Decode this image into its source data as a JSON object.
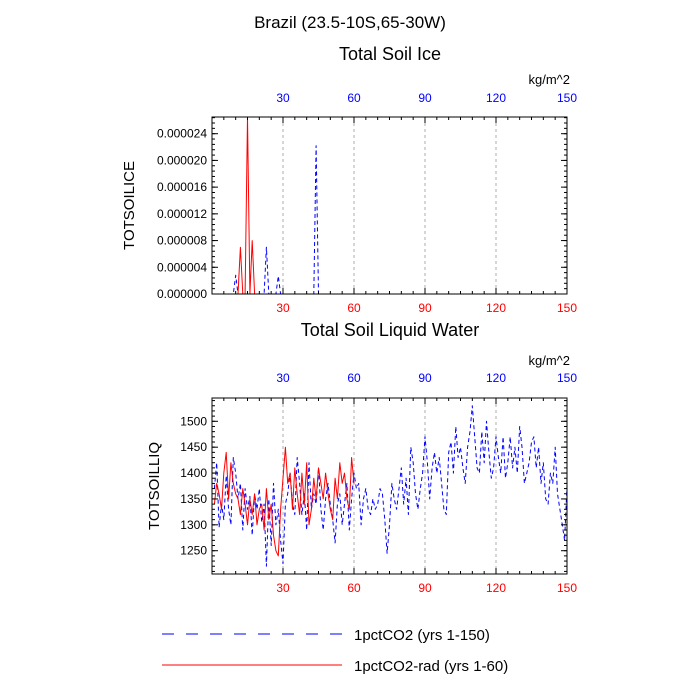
{
  "page": {
    "title": "Brazil (23.5-10S,65-30W)"
  },
  "colors": {
    "series_blue": "#0000ff",
    "series_red": "#ff0000",
    "bottom_ticks": "#ff0000",
    "top_ticks": "#0000ff",
    "grid": "#999999",
    "axis": "#000000"
  },
  "legend": {
    "items": [
      {
        "label": "1pctCO2 (yrs 1-150)",
        "color": "#0000ff",
        "dash": "dashed"
      },
      {
        "label": "1pctCO2-rad (yrs 1-60)",
        "color": "#ff0000",
        "dash": "solid"
      }
    ]
  },
  "chart_data": [
    {
      "type": "line",
      "title": "Total Soil Ice",
      "ylabel": "TOTSOILICE",
      "unit_label": "kg/m^2",
      "xlim": [
        0,
        150
      ],
      "ylim": [
        0,
        2.65e-05
      ],
      "xticks": [
        30,
        60,
        90,
        120,
        150
      ],
      "yticks": [
        0,
        4e-06,
        8e-06,
        1.2e-05,
        1.6e-05,
        2e-05,
        2.4e-05
      ],
      "ytick_labels": [
        "0.000000",
        "0.000004",
        "0.000008",
        "0.000012",
        "0.000016",
        "0.000020",
        "0.000024"
      ],
      "grid": "x-dashed",
      "series": [
        {
          "color": "#0000ff",
          "dash": "dashed",
          "x": [
            1,
            2,
            3,
            4,
            5,
            6,
            7,
            8,
            9,
            10,
            11,
            12,
            13,
            14,
            15,
            16,
            17,
            18,
            19,
            20,
            21,
            22,
            23,
            24,
            25,
            26,
            27,
            28,
            29,
            30,
            31,
            32,
            33,
            34,
            35,
            36,
            37,
            38,
            39,
            40,
            41,
            42,
            43,
            44,
            45,
            46,
            47,
            48,
            49,
            50,
            51,
            52,
            53,
            54,
            55,
            56,
            57,
            58,
            59,
            60,
            61,
            62,
            63,
            64,
            65,
            66,
            67,
            68,
            69,
            70,
            71,
            72,
            73,
            74,
            75,
            76,
            77,
            78,
            79,
            80,
            81,
            82,
            83,
            84,
            85,
            86,
            87,
            88,
            89,
            90,
            91,
            92,
            93,
            94,
            95,
            96,
            97,
            98,
            99,
            100,
            101,
            102,
            103,
            104,
            105,
            106,
            107,
            108,
            109,
            110,
            111,
            112,
            113,
            114,
            115,
            116,
            117,
            118,
            119,
            120,
            121,
            122,
            123,
            124,
            125,
            126,
            127,
            128,
            129,
            130,
            131,
            132,
            133,
            134,
            135,
            136,
            137,
            138,
            139,
            140,
            141,
            142,
            143,
            144,
            145,
            146,
            147,
            148,
            149,
            150
          ],
          "y": [
            0,
            0,
            0,
            0,
            0,
            0,
            0,
            0,
            0,
            2.8e-06,
            0,
            0,
            0,
            0,
            0,
            0,
            0,
            0,
            0,
            0,
            0,
            0,
            7e-06,
            0,
            0,
            0,
            0,
            2.7e-06,
            0,
            0,
            0,
            0,
            0,
            0,
            0,
            0,
            0,
            0,
            0,
            0,
            0,
            0,
            0,
            2.22e-05,
            0,
            0,
            0,
            0,
            0,
            0,
            0,
            0,
            0,
            0,
            0,
            0,
            0,
            0,
            0,
            0,
            0,
            0,
            0,
            0,
            0,
            0,
            0,
            0,
            0,
            0,
            0,
            0,
            0,
            0,
            0,
            0,
            0,
            0,
            0,
            0,
            0,
            0,
            0,
            0,
            0,
            0,
            0,
            0,
            0,
            0,
            0,
            0,
            0,
            0,
            0,
            0,
            0,
            0,
            0,
            0,
            0,
            0,
            0,
            0,
            0,
            0,
            0,
            0,
            0,
            0,
            0,
            0,
            0,
            0,
            0,
            0,
            0,
            0,
            0,
            0,
            0,
            0,
            0,
            0,
            0,
            0,
            0,
            0,
            0,
            0,
            0,
            0,
            0,
            0,
            0,
            0,
            0,
            0,
            0,
            0,
            0,
            0,
            0,
            0,
            0,
            0,
            0,
            0,
            0,
            0
          ]
        },
        {
          "color": "#ff0000",
          "dash": "solid",
          "x": [
            1,
            2,
            3,
            4,
            5,
            6,
            7,
            8,
            9,
            10,
            11,
            12,
            13,
            14,
            15,
            16,
            17,
            18,
            19,
            20,
            21,
            22,
            23,
            24,
            25,
            26,
            27,
            28,
            29,
            30,
            31,
            32,
            33,
            34,
            35,
            36,
            37,
            38,
            39,
            40,
            41,
            42,
            43,
            44,
            45,
            46,
            47,
            48,
            49,
            50,
            51,
            52,
            53,
            54,
            55,
            56,
            57,
            58,
            59,
            60
          ],
          "y": [
            0,
            0,
            0,
            0,
            0,
            0,
            0,
            0,
            0,
            0,
            0,
            7e-06,
            0,
            0,
            2.65e-05,
            0,
            8e-06,
            0,
            0,
            0,
            0,
            0,
            0,
            0,
            0,
            0,
            0,
            0,
            0,
            0,
            0,
            0,
            0,
            0,
            0,
            0,
            0,
            0,
            0,
            0,
            0,
            0,
            0,
            0,
            0,
            0,
            0,
            0,
            0,
            0,
            0,
            0,
            0,
            0,
            0,
            0,
            0,
            0,
            0,
            0
          ]
        }
      ]
    },
    {
      "type": "line",
      "title": "Total Soil Liquid Water",
      "ylabel": "TOTSOILLIQ",
      "unit_label": "kg/m^2",
      "xlim": [
        0,
        150
      ],
      "ylim": [
        1205,
        1545
      ],
      "xticks": [
        30,
        60,
        90,
        120,
        150
      ],
      "yticks": [
        1250,
        1300,
        1350,
        1400,
        1450,
        1500
      ],
      "ytick_labels": [
        "1250",
        "1300",
        "1350",
        "1400",
        "1450",
        "1500"
      ],
      "grid": "x-dashed",
      "series": [
        {
          "color": "#0000ff",
          "dash": "dashed",
          "x": [
            1,
            2,
            3,
            4,
            5,
            6,
            7,
            8,
            9,
            10,
            11,
            12,
            13,
            14,
            15,
            16,
            17,
            18,
            19,
            20,
            21,
            22,
            23,
            24,
            25,
            26,
            27,
            28,
            29,
            30,
            31,
            32,
            33,
            34,
            35,
            36,
            37,
            38,
            39,
            40,
            41,
            42,
            43,
            44,
            45,
            46,
            47,
            48,
            49,
            50,
            51,
            52,
            53,
            54,
            55,
            56,
            57,
            58,
            59,
            60,
            61,
            62,
            63,
            64,
            65,
            66,
            67,
            68,
            69,
            70,
            71,
            72,
            73,
            74,
            75,
            76,
            77,
            78,
            79,
            80,
            81,
            82,
            83,
            84,
            85,
            86,
            87,
            88,
            89,
            90,
            91,
            92,
            93,
            94,
            95,
            96,
            97,
            98,
            99,
            100,
            101,
            102,
            103,
            104,
            105,
            106,
            107,
            108,
            109,
            110,
            111,
            112,
            113,
            114,
            115,
            116,
            117,
            118,
            119,
            120,
            121,
            122,
            123,
            124,
            125,
            126,
            127,
            128,
            129,
            130,
            131,
            132,
            133,
            134,
            135,
            136,
            137,
            138,
            139,
            140,
            141,
            142,
            143,
            144,
            145,
            146,
            147,
            148,
            149,
            150
          ],
          "y": [
            1370,
            1420,
            1295,
            1340,
            1310,
            1395,
            1330,
            1300,
            1430,
            1400,
            1350,
            1380,
            1290,
            1370,
            1330,
            1355,
            1280,
            1360,
            1330,
            1370,
            1305,
            1340,
            1220,
            1350,
            1260,
            1380,
            1300,
            1330,
            1270,
            1225,
            1340,
            1360,
            1400,
            1340,
            1320,
            1430,
            1380,
            1320,
            1360,
            1290,
            1420,
            1330,
            1360,
            1340,
            1410,
            1330,
            1290,
            1350,
            1380,
            1340,
            1310,
            1265,
            1340,
            1360,
            1300,
            1340,
            1380,
            1290,
            1350,
            1400,
            1370,
            1380,
            1300,
            1350,
            1370,
            1330,
            1320,
            1350,
            1330,
            1340,
            1370,
            1360,
            1310,
            1245,
            1300,
            1380,
            1350,
            1330,
            1370,
            1410,
            1340,
            1390,
            1320,
            1450,
            1420,
            1360,
            1330,
            1370,
            1400,
            1470,
            1420,
            1350,
            1410,
            1440,
            1400,
            1430,
            1380,
            1330,
            1320,
            1440,
            1460,
            1400,
            1490,
            1430,
            1450,
            1410,
            1380,
            1450,
            1480,
            1530,
            1470,
            1410,
            1400,
            1480,
            1420,
            1500,
            1440,
            1390,
            1410,
            1470,
            1430,
            1400,
            1470,
            1390,
            1420,
            1470,
            1410,
            1450,
            1400,
            1490,
            1450,
            1380,
            1400,
            1420,
            1460,
            1470,
            1410,
            1450,
            1380,
            1420,
            1350,
            1340,
            1400,
            1380,
            1450,
            1360,
            1330,
            1300,
            1270,
            1375
          ]
        },
        {
          "color": "#ff0000",
          "dash": "solid",
          "x": [
            1,
            2,
            3,
            4,
            5,
            6,
            7,
            8,
            9,
            10,
            11,
            12,
            13,
            14,
            15,
            16,
            17,
            18,
            19,
            20,
            21,
            22,
            23,
            24,
            25,
            26,
            27,
            28,
            29,
            30,
            31,
            32,
            33,
            34,
            35,
            36,
            37,
            38,
            39,
            40,
            41,
            42,
            43,
            44,
            45,
            46,
            47,
            48,
            49,
            50,
            51,
            52,
            53,
            54,
            55,
            56,
            57,
            58,
            59,
            60
          ],
          "y": [
            1340,
            1380,
            1360,
            1330,
            1400,
            1440,
            1350,
            1420,
            1380,
            1360,
            1350,
            1320,
            1370,
            1340,
            1300,
            1350,
            1320,
            1360,
            1300,
            1330,
            1340,
            1290,
            1370,
            1310,
            1340,
            1280,
            1250,
            1240,
            1330,
            1390,
            1450,
            1380,
            1400,
            1330,
            1410,
            1360,
            1320,
            1400,
            1340,
            1420,
            1300,
            1330,
            1390,
            1350,
            1410,
            1380,
            1350,
            1400,
            1360,
            1330,
            1310,
            1390,
            1350,
            1420,
            1380,
            1400,
            1350,
            1330,
            1430,
            1380
          ]
        }
      ]
    }
  ]
}
